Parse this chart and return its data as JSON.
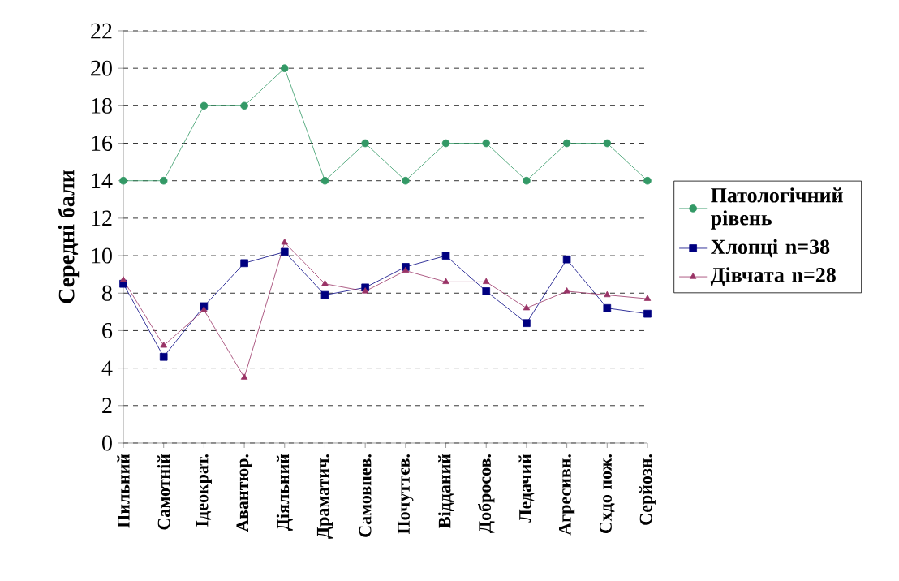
{
  "chart_data": {
    "type": "line",
    "ylabel": "Середні бали",
    "categories": [
      "Пильний",
      "Самотній",
      "Ідеократ.",
      "Авантюр.",
      "Діяльний",
      "Драматич.",
      "Самовпев.",
      "Почуттєв.",
      "Відданий",
      "Добросов.",
      "Ледачий",
      "Агресивн.",
      "Схдо пож.",
      "Серйозн."
    ],
    "series": [
      {
        "name": "Патологічний рівень",
        "color": "#339966",
        "marker": "circle",
        "values": [
          14,
          14,
          18,
          18,
          20,
          14,
          16,
          14,
          16,
          16,
          14,
          16,
          16,
          14
        ]
      },
      {
        "name": "Хлопці n=38",
        "color": "#000080",
        "marker": "square",
        "values": [
          8.5,
          4.6,
          7.3,
          9.6,
          10.2,
          7.9,
          8.3,
          9.4,
          10.0,
          8.1,
          6.4,
          9.8,
          7.2,
          6.9
        ]
      },
      {
        "name": "Дівчата n=28",
        "color": "#993366",
        "marker": "triangle",
        "values": [
          8.7,
          5.2,
          7.1,
          3.5,
          10.7,
          8.5,
          8.1,
          9.2,
          8.6,
          8.6,
          7.2,
          8.1,
          7.9,
          7.7
        ]
      }
    ],
    "ylim": [
      0,
      22
    ],
    "yticks": [
      0,
      2,
      4,
      6,
      8,
      10,
      12,
      14,
      16,
      18,
      20,
      22
    ],
    "grid": "y",
    "legend": "right",
    "line_style": "solid"
  }
}
